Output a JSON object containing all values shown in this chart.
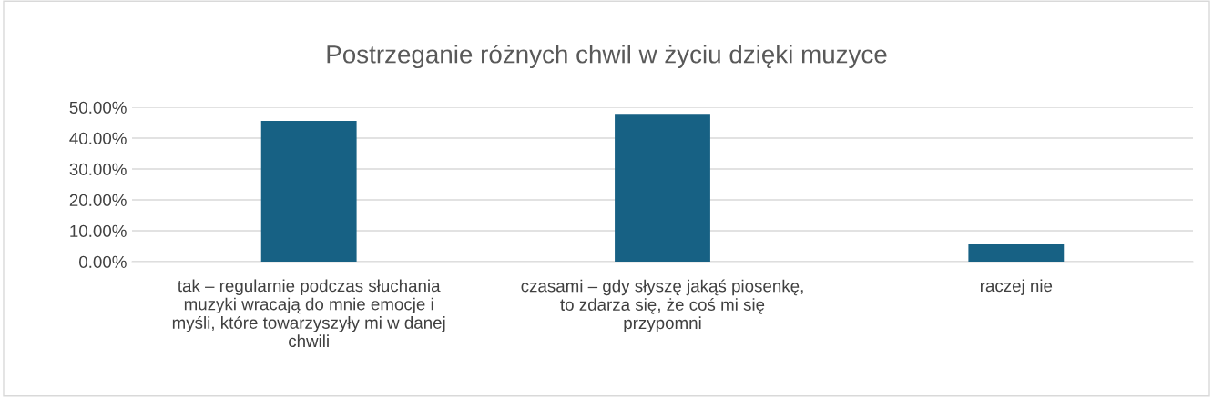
{
  "chart_data": {
    "type": "bar",
    "title": "Postrzeganie różnych chwil w życiu dzięki muzyce",
    "categories": [
      "tak – regularnie podczas słuchania muzyki wracają do mnie emocje i myśli, które towarzyszyły mi w danej chwili",
      "czasami – gdy słyszę jakąś piosenkę, to zdarza się, że coś mi się przypomni",
      "raczej nie"
    ],
    "values": [
      45.6,
      47.6,
      5.6
    ],
    "color": "#176184",
    "ylim": [
      0,
      50
    ],
    "yticks": [
      {
        "value": 0,
        "label": "0.00%"
      },
      {
        "value": 10,
        "label": "10.00%"
      },
      {
        "value": 20,
        "label": "20.00%"
      },
      {
        "value": 30,
        "label": "30.00%"
      },
      {
        "value": 40,
        "label": "40.00%"
      },
      {
        "value": 50,
        "label": "50.00%"
      }
    ],
    "grid": "y",
    "legend": false
  }
}
